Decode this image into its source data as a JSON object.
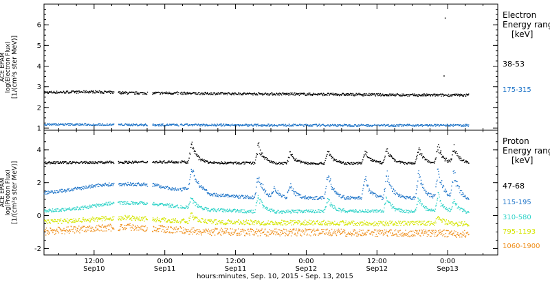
{
  "figure": {
    "xlabel": "hours:minutes, Sep. 10, 2015 - Sep. 13, 2015",
    "x_ticks": [
      {
        "line1": "12:00",
        "line2": "Sep10",
        "hour": 12
      },
      {
        "line1": "0:00",
        "line2": "Sep11",
        "hour": 24
      },
      {
        "line1": "12:00",
        "line2": "Sep11",
        "hour": 36
      },
      {
        "line1": "0:00",
        "line2": "Sep12",
        "hour": 48
      },
      {
        "line1": "12:00",
        "line2": "Sep12",
        "hour": 60
      },
      {
        "line1": "0:00",
        "line2": "Sep13",
        "hour": 72
      }
    ],
    "x_range_hours": [
      3.5,
      80.5
    ],
    "data_end_hour": 75.5
  },
  "chart_data": [
    {
      "type": "scatter",
      "panel": "electron",
      "ylabel_lines": [
        "ACE EPAM",
        "log(Electron Flux)",
        "[1/(cm²s ster MeV)]"
      ],
      "ylim": [
        0.9,
        7.0
      ],
      "y_ticks": [
        1,
        2,
        3,
        4,
        5,
        6
      ],
      "legend_title": [
        "Electron",
        "Energy ranges",
        "[keV]"
      ],
      "series": [
        {
          "name": "38-53",
          "color": "#000000",
          "base": 2.72,
          "spread": 0.06,
          "x": [
            3.5,
            12,
            18,
            24,
            30,
            40,
            50,
            60,
            66,
            70,
            75.5
          ],
          "y": [
            2.75,
            2.78,
            2.72,
            2.72,
            2.7,
            2.68,
            2.66,
            2.64,
            2.62,
            2.62,
            2.62
          ],
          "outliers": [
            {
              "x": 71.5,
              "y": 6.35
            },
            {
              "x": 71.3,
              "y": 3.55
            }
          ]
        },
        {
          "name": "175-315",
          "color": "#1e74c8",
          "base": 1.18,
          "spread": 0.05,
          "x": [
            3.5,
            20,
            40,
            60,
            75.5
          ],
          "y": [
            1.2,
            1.18,
            1.17,
            1.16,
            1.16
          ],
          "outliers": []
        }
      ]
    },
    {
      "type": "scatter",
      "panel": "proton",
      "ylabel_lines": [
        "ACE EPAM",
        "log(Proton Flux)",
        "[1/(cm²s ster MeV)]"
      ],
      "ylim": [
        -2.4,
        5.2
      ],
      "y_ticks": [
        -2,
        0,
        2,
        4
      ],
      "legend_title": [
        "Proton",
        "Energy ranges",
        "[keV]"
      ],
      "series": [
        {
          "name": "47-68",
          "color": "#000000",
          "base": 3.25,
          "spread": 0.07,
          "x": [
            3.5,
            20,
            26,
            30,
            40,
            50,
            60,
            70,
            75.5
          ],
          "y": [
            3.25,
            3.28,
            3.3,
            3.25,
            3.22,
            3.2,
            3.22,
            3.2,
            3.2
          ],
          "spikes": [
            {
              "x": 28.5,
              "h": 1.4
            },
            {
              "x": 39.8,
              "h": 1.3
            },
            {
              "x": 45.2,
              "h": 0.8
            },
            {
              "x": 51.6,
              "h": 1.0
            },
            {
              "x": 57.9,
              "h": 0.9
            },
            {
              "x": 61.6,
              "h": 1.0
            },
            {
              "x": 67.0,
              "h": 1.1
            },
            {
              "x": 70.3,
              "h": 1.3
            },
            {
              "x": 73.0,
              "h": 1.2
            }
          ]
        },
        {
          "name": "115-195",
          "color": "#1e74c8",
          "base": 1.5,
          "spread": 0.1,
          "x": [
            3.5,
            8,
            13,
            17,
            22,
            26,
            29,
            32,
            40,
            50,
            60,
            70,
            75.5
          ],
          "y": [
            1.4,
            1.6,
            1.9,
            1.95,
            1.9,
            1.6,
            1.7,
            1.3,
            1.1,
            1.1,
            1.1,
            1.1,
            1.0
          ],
          "spikes": [
            {
              "x": 28.5,
              "h": 1.6
            },
            {
              "x": 39.8,
              "h": 1.8
            },
            {
              "x": 42.5,
              "h": 0.7
            },
            {
              "x": 45.2,
              "h": 1.0
            },
            {
              "x": 51.6,
              "h": 2.0
            },
            {
              "x": 57.9,
              "h": 1.5
            },
            {
              "x": 61.6,
              "h": 1.8
            },
            {
              "x": 67.0,
              "h": 1.8
            },
            {
              "x": 70.3,
              "h": 2.2
            },
            {
              "x": 73.0,
              "h": 2.0
            }
          ]
        },
        {
          "name": "310-580",
          "color": "#2fd3c8",
          "base": 0.35,
          "spread": 0.1,
          "x": [
            3.5,
            10,
            15,
            20,
            26,
            30,
            40,
            50,
            60,
            70,
            75.5
          ],
          "y": [
            0.3,
            0.5,
            0.8,
            0.8,
            0.6,
            0.4,
            0.25,
            0.3,
            0.3,
            0.25,
            0.2
          ],
          "spikes": [
            {
              "x": 28.5,
              "h": 0.8
            },
            {
              "x": 39.8,
              "h": 1.2
            },
            {
              "x": 51.6,
              "h": 0.9
            },
            {
              "x": 61.6,
              "h": 1.0
            },
            {
              "x": 67.0,
              "h": 1.0
            },
            {
              "x": 70.3,
              "h": 1.2
            },
            {
              "x": 73.0,
              "h": 0.9
            }
          ]
        },
        {
          "name": "795-1193",
          "color": "#d4e500",
          "base": -0.4,
          "spread": 0.15,
          "x": [
            3.5,
            12,
            18,
            24,
            30,
            40,
            50,
            60,
            70,
            75.5
          ],
          "y": [
            -0.35,
            -0.2,
            -0.1,
            -0.25,
            -0.35,
            -0.4,
            -0.4,
            -0.45,
            -0.45,
            -0.5
          ],
          "spikes": [
            {
              "x": 28.5,
              "h": 0.5
            },
            {
              "x": 70.3,
              "h": 0.5
            }
          ]
        },
        {
          "name": "1060-1900",
          "color": "#ef8f1c",
          "base": -0.95,
          "spread": 0.22,
          "x": [
            3.5,
            12,
            18,
            24,
            30,
            40,
            50,
            60,
            70,
            75.5
          ],
          "y": [
            -0.95,
            -0.75,
            -0.65,
            -0.8,
            -0.95,
            -1.0,
            -1.0,
            -1.05,
            -1.05,
            -1.1
          ],
          "spikes": []
        }
      ]
    }
  ]
}
